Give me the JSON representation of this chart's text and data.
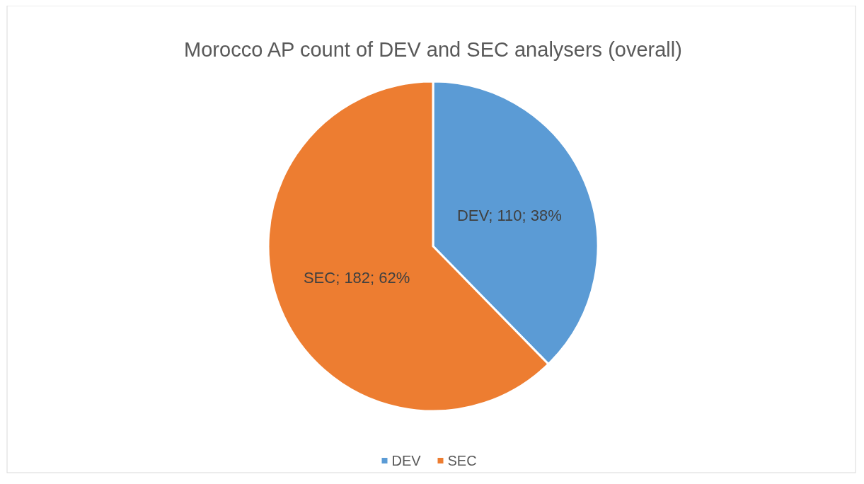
{
  "chart_data": {
    "type": "pie",
    "title": "Morocco AP count of DEV and SEC analysers (overall)",
    "categories": [
      "DEV",
      "SEC"
    ],
    "values": [
      110,
      182
    ],
    "colors": [
      "#5b9bd5",
      "#ed7d31"
    ],
    "value_labels": [
      "DEV; 110; 38%",
      "SEC; 182; 62%"
    ],
    "legend": "bottom"
  }
}
